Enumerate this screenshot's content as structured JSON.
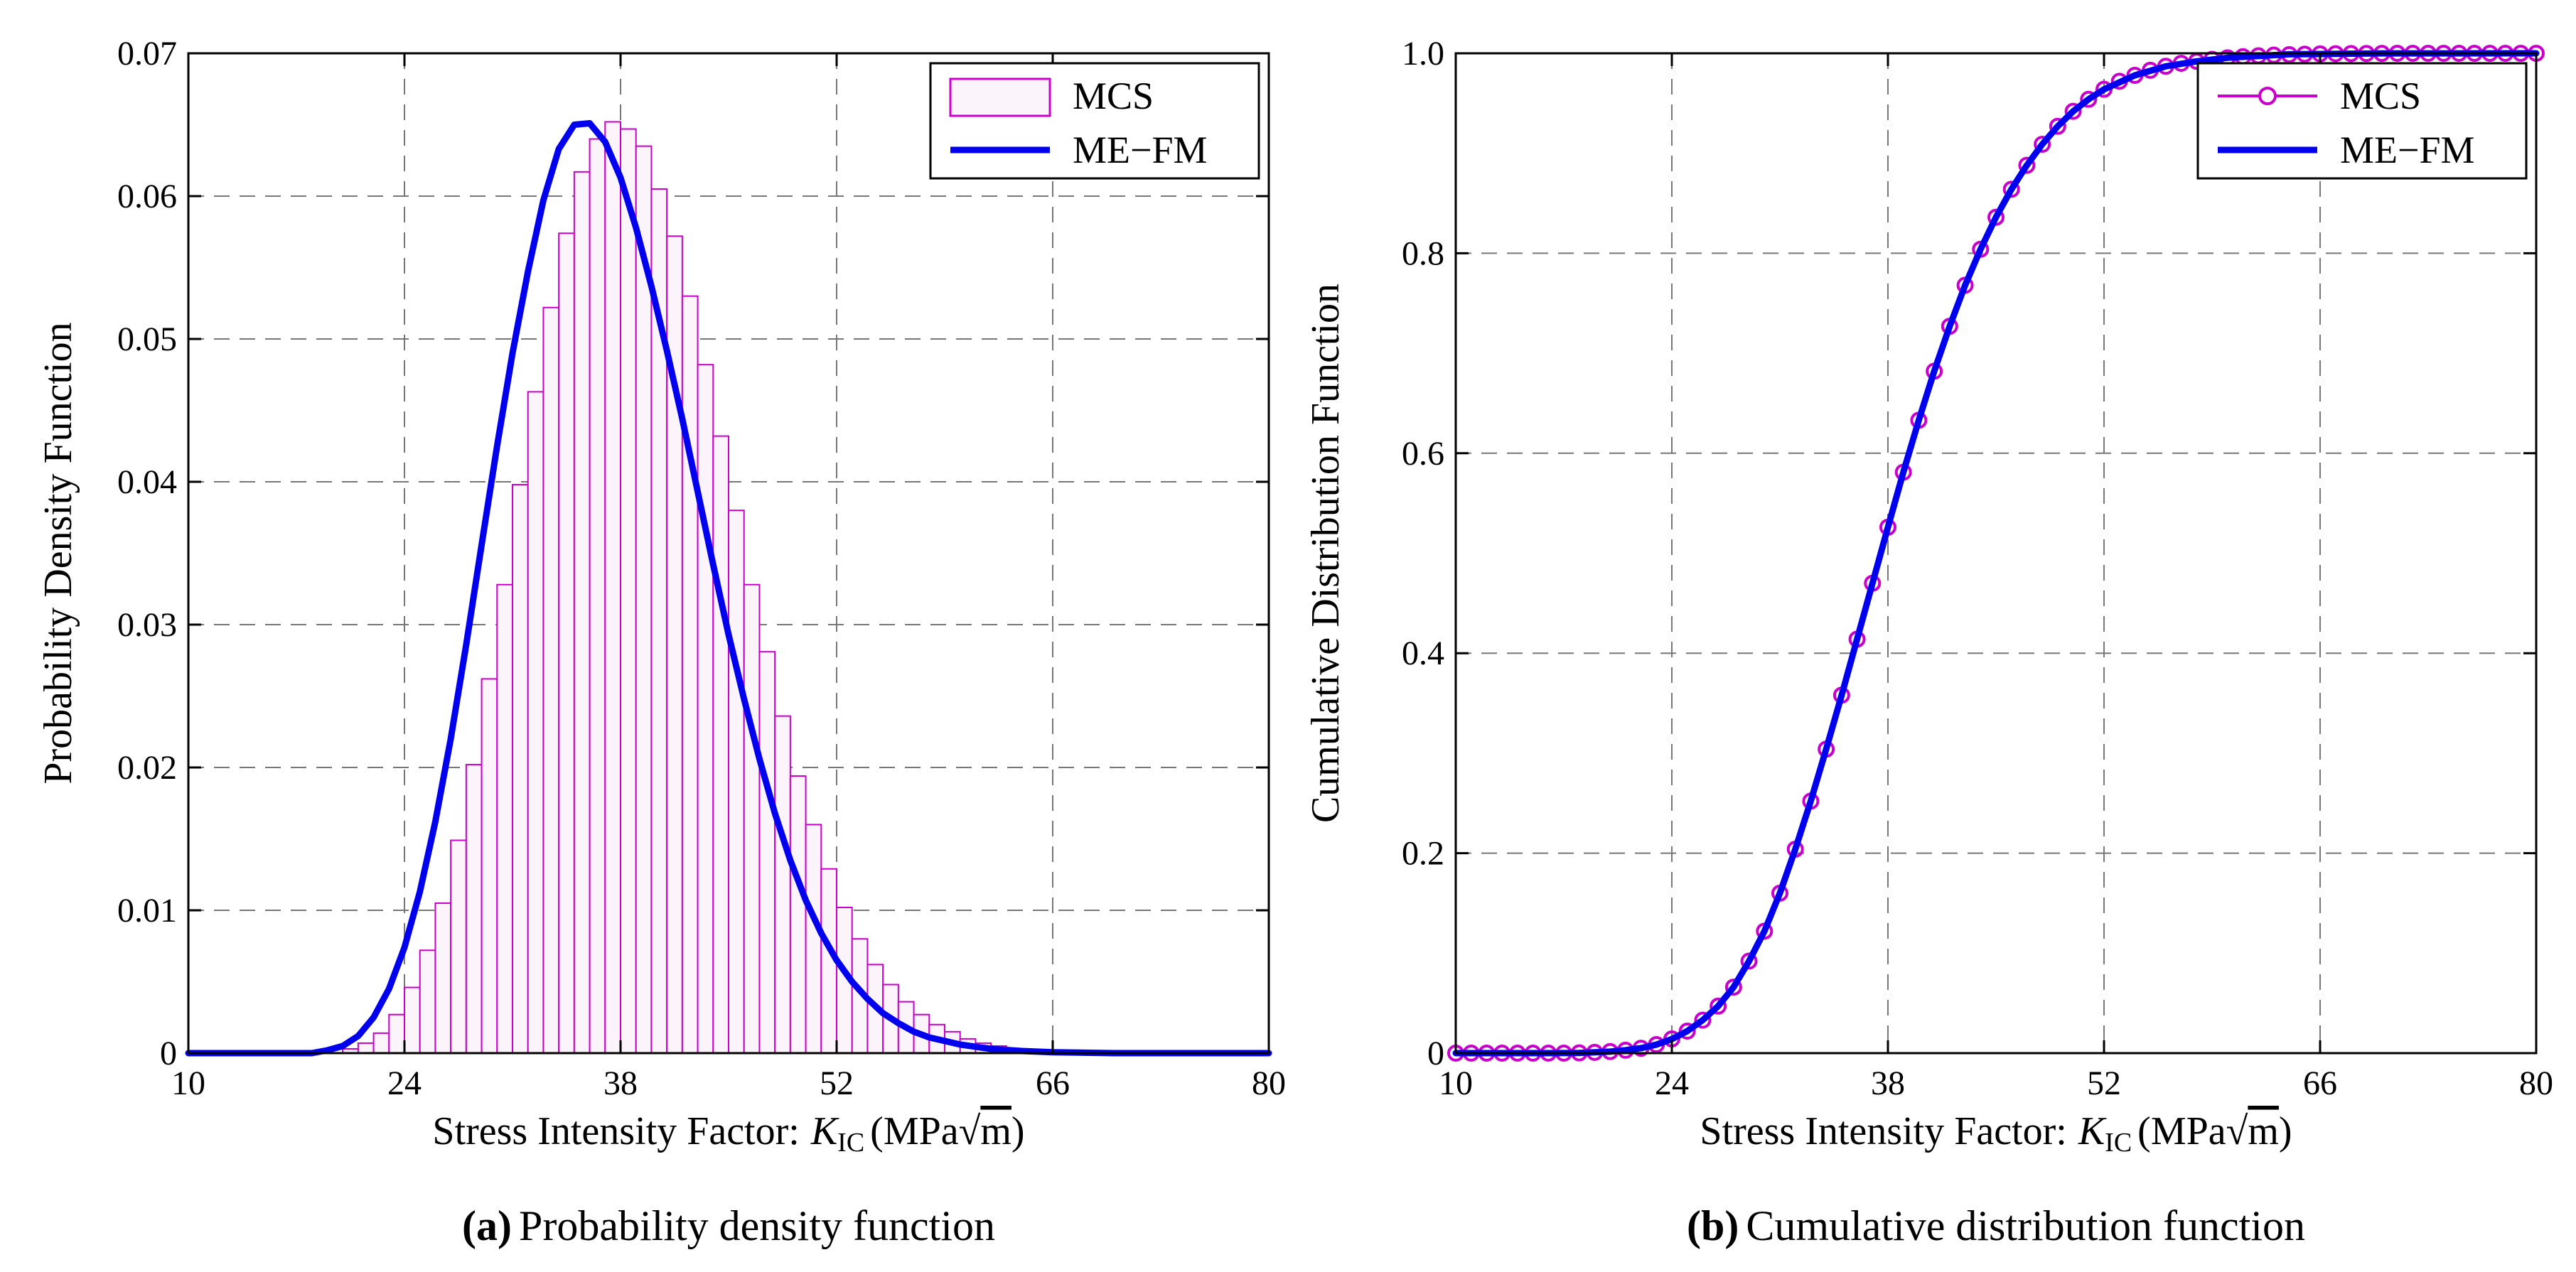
{
  "chart_data": [
    {
      "type": "bar",
      "panel": "a",
      "caption_letter": "(a)",
      "caption_text": "Probability density function",
      "xlabel": "Stress Intensity Factor",
      "xlabel_colon": ":",
      "xlabel_var": "K",
      "xlabel_sub": "IC",
      "xlabel_unit_open": "(MPa",
      "xlabel_unit_m": "m",
      "xlabel_unit_close": ")",
      "ylabel": "Probability Density Function",
      "xlim": [
        10,
        80
      ],
      "ylim": [
        0,
        0.07
      ],
      "xticks": [
        10,
        24,
        38,
        52,
        66,
        80
      ],
      "yticks": [
        0,
        0.01,
        0.02,
        0.03,
        0.04,
        0.05,
        0.06,
        0.07
      ],
      "ytick_labels": [
        "0",
        "0.01",
        "0.02",
        "0.03",
        "0.04",
        "0.05",
        "0.06",
        "0.07"
      ],
      "grid": true,
      "legend_position": "top-right",
      "series": [
        {
          "name": "MCS",
          "kind": "histogram",
          "color": "#cc00cc",
          "fill": "#fbf4fb",
          "bin_width": 1.0,
          "bin_start": 20,
          "values": [
            0.0003,
            0.0007,
            0.0014,
            0.0027,
            0.0046,
            0.0072,
            0.0105,
            0.0149,
            0.0202,
            0.0262,
            0.0328,
            0.0398,
            0.0463,
            0.0522,
            0.0574,
            0.0617,
            0.064,
            0.0652,
            0.0647,
            0.0635,
            0.0605,
            0.0572,
            0.053,
            0.0482,
            0.0432,
            0.038,
            0.0328,
            0.0281,
            0.0236,
            0.0194,
            0.016,
            0.0129,
            0.0102,
            0.008,
            0.0062,
            0.0048,
            0.0036,
            0.0027,
            0.002,
            0.0015,
            0.001,
            0.0007,
            0.0005,
            0.0003
          ]
        },
        {
          "name": "ME−FM",
          "kind": "line",
          "color": "#0000ee",
          "x": [
            10,
            18,
            19,
            20,
            21,
            22,
            23,
            24,
            25,
            26,
            27,
            28,
            29,
            30,
            31,
            32,
            33,
            34,
            35,
            36,
            37,
            38,
            39,
            40,
            41,
            42,
            43,
            44,
            45,
            46,
            47,
            48,
            49,
            50,
            51,
            52,
            53,
            54,
            55,
            56,
            57,
            58,
            60,
            62,
            64,
            66,
            70,
            80
          ],
          "values": [
            0,
            0.0,
            0.0002,
            0.0005,
            0.0012,
            0.0025,
            0.0045,
            0.0074,
            0.0113,
            0.0162,
            0.022,
            0.0286,
            0.0356,
            0.0425,
            0.049,
            0.0547,
            0.0597,
            0.0633,
            0.065,
            0.0651,
            0.0638,
            0.0613,
            0.0578,
            0.0537,
            0.0492,
            0.0444,
            0.0393,
            0.0342,
            0.0293,
            0.0248,
            0.0206,
            0.0168,
            0.0135,
            0.0107,
            0.0084,
            0.0065,
            0.005,
            0.0038,
            0.0028,
            0.0021,
            0.0015,
            0.0011,
            0.0006,
            0.0003,
            0.00015,
            6e-05,
            0.0,
            0
          ]
        }
      ]
    },
    {
      "type": "line",
      "panel": "b",
      "caption_letter": "(b)",
      "caption_text": "Cumulative distribution function",
      "xlabel": "Stress Intensity Factor",
      "xlabel_colon": ":",
      "xlabel_var": "K",
      "xlabel_sub": "IC",
      "xlabel_unit_open": "(MPa",
      "xlabel_unit_m": "m",
      "xlabel_unit_close": ")",
      "ylabel": "Cumulative Distribution Function",
      "xlim": [
        10,
        80
      ],
      "ylim": [
        0,
        1.0
      ],
      "xticks": [
        10,
        24,
        38,
        52,
        66,
        80
      ],
      "yticks": [
        0,
        0.2,
        0.4,
        0.6,
        0.8,
        1.0
      ],
      "ytick_labels": [
        "0",
        "0.2",
        "0.4",
        "0.6",
        "0.8",
        "1.0"
      ],
      "grid": true,
      "legend_position": "top-right",
      "series": [
        {
          "name": "MCS",
          "kind": "markers",
          "color": "#cc00cc",
          "x": [
            10,
            11,
            12,
            13,
            14,
            15,
            16,
            17,
            18,
            19,
            20,
            21,
            22,
            23,
            24,
            25,
            26,
            27,
            28,
            29,
            30,
            31,
            32,
            33,
            34,
            35,
            36,
            37,
            38,
            39,
            40,
            41,
            42,
            43,
            44,
            45,
            46,
            47,
            48,
            49,
            50,
            51,
            52,
            53,
            54,
            55,
            56,
            57,
            58,
            59,
            60,
            61,
            62,
            63,
            64,
            65,
            66,
            67,
            68,
            69,
            70,
            71,
            72,
            73,
            74,
            75,
            76,
            77,
            78,
            79,
            80
          ],
          "values": [
            0,
            0,
            0,
            0,
            0,
            0,
            0,
            0,
            0.0003,
            0.0008,
            0.0016,
            0.0029,
            0.0049,
            0.0085,
            0.0142,
            0.022,
            0.033,
            0.047,
            0.066,
            0.092,
            0.122,
            0.16,
            0.204,
            0.252,
            0.304,
            0.358,
            0.414,
            0.47,
            0.526,
            0.581,
            0.633,
            0.682,
            0.727,
            0.768,
            0.804,
            0.836,
            0.864,
            0.888,
            0.909,
            0.927,
            0.942,
            0.954,
            0.964,
            0.972,
            0.978,
            0.983,
            0.987,
            0.99,
            0.992,
            0.994,
            0.9955,
            0.9966,
            0.9975,
            0.9982,
            0.9987,
            0.9991,
            0.9994,
            0.9996,
            0.9997,
            0.9998,
            0.9999,
            1,
            1,
            1,
            1,
            1,
            1,
            1,
            1,
            1,
            1
          ]
        },
        {
          "name": "ME−FM",
          "kind": "line",
          "color": "#0000ee",
          "x": [
            10,
            16,
            18,
            20,
            21,
            22,
            23,
            24,
            25,
            26,
            27,
            28,
            29,
            30,
            31,
            32,
            33,
            34,
            35,
            36,
            37,
            38,
            39,
            40,
            41,
            42,
            43,
            44,
            45,
            46,
            47,
            48,
            49,
            50,
            51,
            52,
            54,
            56,
            58,
            60,
            64,
            70,
            80
          ],
          "values": [
            0,
            0,
            0.0002,
            0.0015,
            0.003,
            0.005,
            0.0085,
            0.014,
            0.022,
            0.033,
            0.047,
            0.066,
            0.092,
            0.122,
            0.16,
            0.204,
            0.252,
            0.304,
            0.358,
            0.414,
            0.47,
            0.526,
            0.581,
            0.633,
            0.682,
            0.727,
            0.768,
            0.804,
            0.836,
            0.864,
            0.888,
            0.909,
            0.927,
            0.942,
            0.954,
            0.964,
            0.978,
            0.987,
            0.992,
            0.9955,
            0.999,
            0.9999,
            1
          ]
        }
      ]
    }
  ]
}
